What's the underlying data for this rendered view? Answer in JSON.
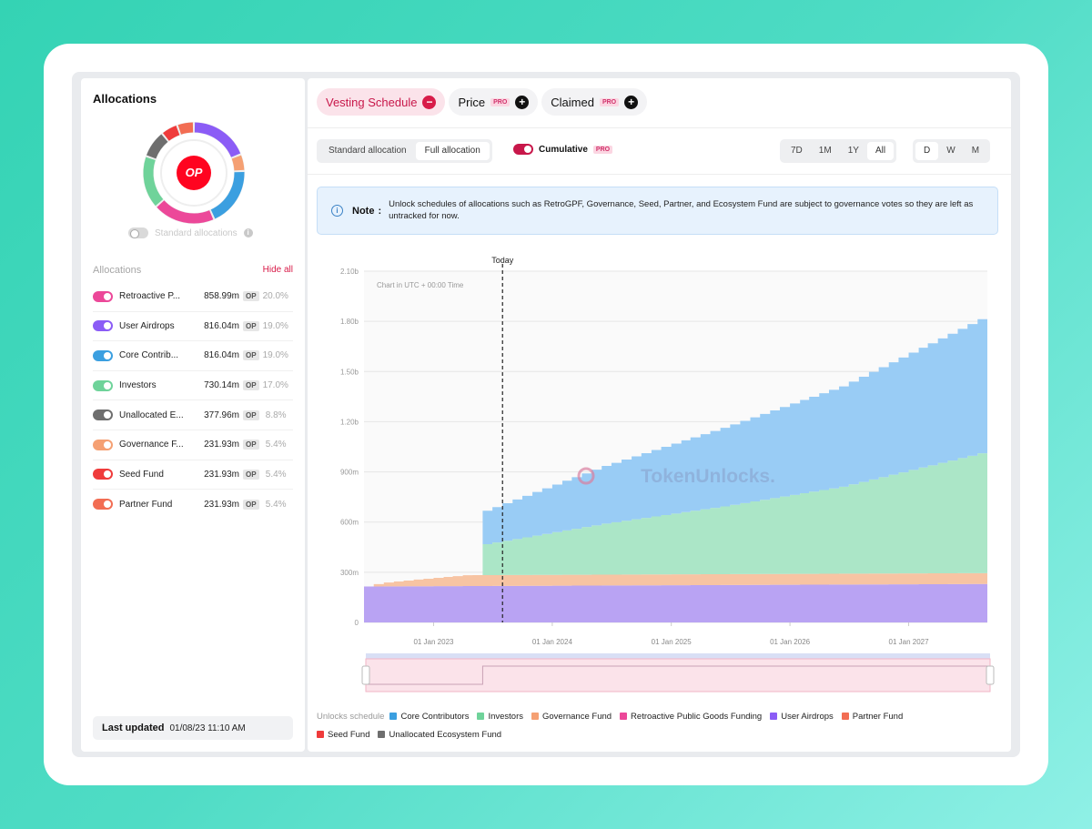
{
  "left": {
    "title": "Allocations",
    "logo_text": "OP",
    "standard_allocations_label": "Standard allocations",
    "list_title": "Allocations",
    "hide_all": "Hide all",
    "items": [
      {
        "name": "Retroactive P...",
        "amount": "858.99m",
        "unit": "OP",
        "pct": "20.0%",
        "color": "#ec4899"
      },
      {
        "name": "User Airdrops",
        "amount": "816.04m",
        "unit": "OP",
        "pct": "19.0%",
        "color": "#8b5cf6"
      },
      {
        "name": "Core Contrib...",
        "amount": "816.04m",
        "unit": "OP",
        "pct": "19.0%",
        "color": "#3b9fe0"
      },
      {
        "name": "Investors",
        "amount": "730.14m",
        "unit": "OP",
        "pct": "17.0%",
        "color": "#6fd39a"
      },
      {
        "name": "Unallocated E...",
        "amount": "377.96m",
        "unit": "OP",
        "pct": "8.8%",
        "color": "#6e6e6e"
      },
      {
        "name": "Governance F...",
        "amount": "231.93m",
        "unit": "OP",
        "pct": "5.4%",
        "color": "#f5a073"
      },
      {
        "name": "Seed Fund",
        "amount": "231.93m",
        "unit": "OP",
        "pct": "5.4%",
        "color": "#ef3b3b"
      },
      {
        "name": "Partner Fund",
        "amount": "231.93m",
        "unit": "OP",
        "pct": "5.4%",
        "color": "#f26d53"
      }
    ],
    "last_updated_label": "Last updated",
    "last_updated_value": "01/08/23 11:10 AM"
  },
  "tabs": [
    {
      "label": "Vesting Schedule"
    },
    {
      "label": "Price",
      "badge": "PRO"
    },
    {
      "label": "Claimed",
      "badge": "PRO"
    }
  ],
  "controls": {
    "standard_allocation": "Standard allocation",
    "full_allocation": "Full allocation",
    "cumulative": "Cumulative",
    "cumulative_badge": "PRO",
    "ranges": [
      "7D",
      "1M",
      "1Y",
      "All"
    ],
    "granularity": [
      "D",
      "W",
      "M"
    ]
  },
  "note": {
    "label": "Note",
    "text": "Unlock schedules of allocations such as RetroGPF, Governance, Seed, Partner, and Ecosystem Fund are subject to governance votes so they are left as untracked for now."
  },
  "chart_data": {
    "type": "area",
    "stacked": true,
    "today_label": "Today",
    "today_date": "2023-08-01",
    "subtitle": "Chart in UTC + 00:00 Time",
    "watermark": "TokenUnlocks.",
    "y_ticks": [
      "0",
      "300m",
      "600m",
      "900m",
      "1.20b",
      "1.50b",
      "1.80b",
      "2.10b"
    ],
    "ylim": [
      0,
      2100
    ],
    "x_ticks": [
      "01 Jan 2023",
      "01 Jan 2024",
      "01 Jan 2025",
      "01 Jan 2026",
      "01 Jan 2027"
    ],
    "xlim": [
      "2022-06-01",
      "2027-08-31"
    ],
    "series": [
      {
        "name": "User Airdrops",
        "color": "#b9a3f3",
        "points": [
          [
            "2022-06-01",
            215
          ],
          [
            "2027-08-31",
            230
          ]
        ]
      },
      {
        "name": "Governance Fund",
        "color": "#f7c4a3",
        "points": [
          [
            "2022-06-01",
            0
          ],
          [
            "2022-07-15",
            20
          ],
          [
            "2022-11-01",
            40
          ],
          [
            "2023-04-01",
            65
          ],
          [
            "2027-08-31",
            65
          ]
        ]
      },
      {
        "name": "Investors",
        "color": "#abe6c7",
        "points": [
          [
            "2022-06-01",
            0
          ],
          [
            "2023-05-31",
            0
          ],
          [
            "2023-06-01",
            185
          ],
          [
            "2024-06-01",
            305
          ],
          [
            "2025-06-01",
            405
          ],
          [
            "2026-06-01",
            520
          ],
          [
            "2027-08-31",
            730
          ]
        ]
      },
      {
        "name": "Core Contributors",
        "color": "#99ccf5",
        "points": [
          [
            "2022-06-01",
            0
          ],
          [
            "2023-05-31",
            0
          ],
          [
            "2023-06-01",
            200
          ],
          [
            "2024-06-01",
            345
          ],
          [
            "2025-06-01",
            470
          ],
          [
            "2026-06-01",
            600
          ],
          [
            "2027-08-31",
            816
          ]
        ]
      }
    ],
    "legend_title": "Unlocks schedule",
    "legend": [
      {
        "name": "Core Contributors",
        "color": "#3b9fe0"
      },
      {
        "name": "Investors",
        "color": "#6fd39a"
      },
      {
        "name": "Governance Fund",
        "color": "#f5a073"
      },
      {
        "name": "Retroactive Public Goods Funding",
        "color": "#ec4899"
      },
      {
        "name": "User Airdrops",
        "color": "#8b5cf6"
      },
      {
        "name": "Partner Fund",
        "color": "#f26d53"
      },
      {
        "name": "Seed Fund",
        "color": "#ef3b3b"
      },
      {
        "name": "Unallocated Ecosystem Fund",
        "color": "#6e6e6e"
      }
    ]
  }
}
